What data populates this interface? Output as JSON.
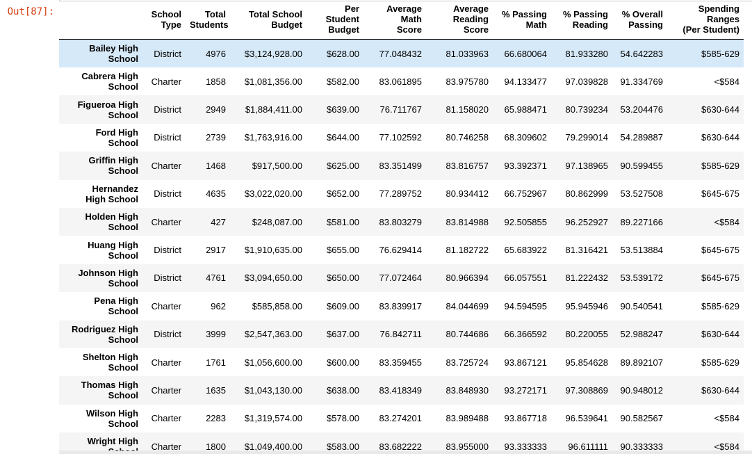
{
  "notebook": {
    "output_prompt": "Out[87]:"
  },
  "table": {
    "highlighted_row_index": 0,
    "columns": [
      "School\nType",
      "Total\nStudents",
      "Total School\nBudget",
      "Per Student\nBudget",
      "Average Math\nScore",
      "Average\nReading Score",
      "% Passing\nMath",
      "% Passing\nReading",
      "% Overall\nPassing",
      "Spending Ranges\n(Per Student)"
    ],
    "rows": [
      {
        "name": "Bailey High\nSchool",
        "values": [
          "District",
          "4976",
          "$3,124,928.00",
          "$628.00",
          "77.048432",
          "81.033963",
          "66.680064",
          "81.933280",
          "54.642283",
          "$585-629"
        ]
      },
      {
        "name": "Cabrera High\nSchool",
        "values": [
          "Charter",
          "1858",
          "$1,081,356.00",
          "$582.00",
          "83.061895",
          "83.975780",
          "94.133477",
          "97.039828",
          "91.334769",
          "<$584"
        ]
      },
      {
        "name": "Figueroa High\nSchool",
        "values": [
          "District",
          "2949",
          "$1,884,411.00",
          "$639.00",
          "76.711767",
          "81.158020",
          "65.988471",
          "80.739234",
          "53.204476",
          "$630-644"
        ]
      },
      {
        "name": "Ford High\nSchool",
        "values": [
          "District",
          "2739",
          "$1,763,916.00",
          "$644.00",
          "77.102592",
          "80.746258",
          "68.309602",
          "79.299014",
          "54.289887",
          "$630-644"
        ]
      },
      {
        "name": "Griffin High\nSchool",
        "values": [
          "Charter",
          "1468",
          "$917,500.00",
          "$625.00",
          "83.351499",
          "83.816757",
          "93.392371",
          "97.138965",
          "90.599455",
          "$585-629"
        ]
      },
      {
        "name": "Hernandez\nHigh School",
        "values": [
          "District",
          "4635",
          "$3,022,020.00",
          "$652.00",
          "77.289752",
          "80.934412",
          "66.752967",
          "80.862999",
          "53.527508",
          "$645-675"
        ]
      },
      {
        "name": "Holden High\nSchool",
        "values": [
          "Charter",
          "427",
          "$248,087.00",
          "$581.00",
          "83.803279",
          "83.814988",
          "92.505855",
          "96.252927",
          "89.227166",
          "<$584"
        ]
      },
      {
        "name": "Huang High\nSchool",
        "values": [
          "District",
          "2917",
          "$1,910,635.00",
          "$655.00",
          "76.629414",
          "81.182722",
          "65.683922",
          "81.316421",
          "53.513884",
          "$645-675"
        ]
      },
      {
        "name": "Johnson High\nSchool",
        "values": [
          "District",
          "4761",
          "$3,094,650.00",
          "$650.00",
          "77.072464",
          "80.966394",
          "66.057551",
          "81.222432",
          "53.539172",
          "$645-675"
        ]
      },
      {
        "name": "Pena High\nSchool",
        "values": [
          "Charter",
          "962",
          "$585,858.00",
          "$609.00",
          "83.839917",
          "84.044699",
          "94.594595",
          "95.945946",
          "90.540541",
          "$585-629"
        ]
      },
      {
        "name": "Rodriguez High\nSchool",
        "values": [
          "District",
          "3999",
          "$2,547,363.00",
          "$637.00",
          "76.842711",
          "80.744686",
          "66.366592",
          "80.220055",
          "52.988247",
          "$630-644"
        ]
      },
      {
        "name": "Shelton High\nSchool",
        "values": [
          "Charter",
          "1761",
          "$1,056,600.00",
          "$600.00",
          "83.359455",
          "83.725724",
          "93.867121",
          "95.854628",
          "89.892107",
          "$585-629"
        ]
      },
      {
        "name": "Thomas High\nSchool",
        "values": [
          "Charter",
          "1635",
          "$1,043,130.00",
          "$638.00",
          "83.418349",
          "83.848930",
          "93.272171",
          "97.308869",
          "90.948012",
          "$630-644"
        ]
      },
      {
        "name": "Wilson High\nSchool",
        "values": [
          "Charter",
          "2283",
          "$1,319,574.00",
          "$578.00",
          "83.274201",
          "83.989488",
          "93.867718",
          "96.539641",
          "90.582567",
          "<$584"
        ]
      },
      {
        "name": "Wright High\nSchool",
        "values": [
          "Charter",
          "1800",
          "$1,049,400.00",
          "$583.00",
          "83.682222",
          "83.955000",
          "93.333333",
          "96.611111",
          "90.333333",
          "<$584"
        ]
      }
    ]
  },
  "colors": {
    "prompt_text": "#d84315",
    "row_stripe": "#f5f5f5",
    "row_highlight": "#d6e9f8",
    "header_border": "#000000",
    "input_cell_border": "#c8c8c8",
    "scrollbar_track": "#e9e9e9"
  }
}
